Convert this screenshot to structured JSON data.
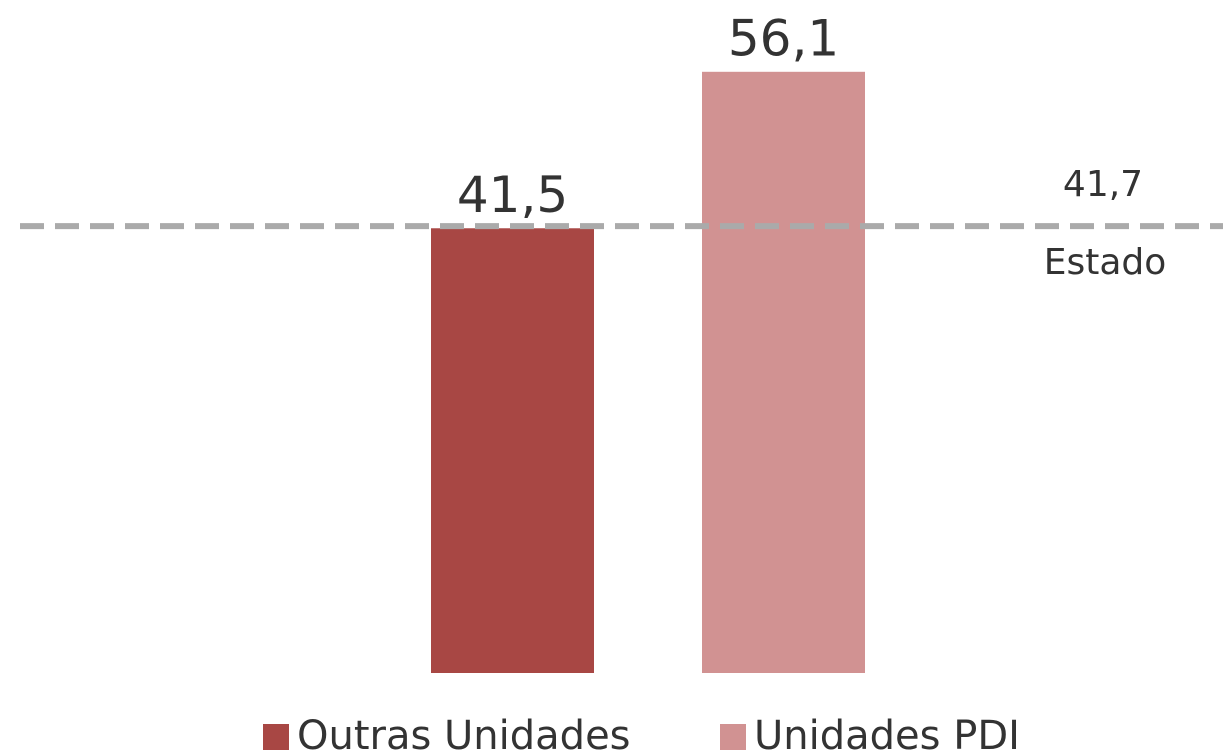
{
  "chart_data": {
    "type": "bar",
    "categories": [
      null
    ],
    "series": [
      {
        "name": "Outras Unidades",
        "color": "#a84744",
        "values": [
          41.5
        ],
        "value_labels": [
          "41,5"
        ]
      },
      {
        "name": "Unidades PDI",
        "color": "#d19292",
        "values": [
          56.1
        ],
        "value_labels": [
          "56,1"
        ]
      }
    ],
    "ylim": [
      0,
      62.8
    ],
    "reference_line": {
      "value": 41.7,
      "label": "41,7",
      "name": "Estado",
      "color": "#aaaaaa"
    },
    "legend": "bottom"
  }
}
